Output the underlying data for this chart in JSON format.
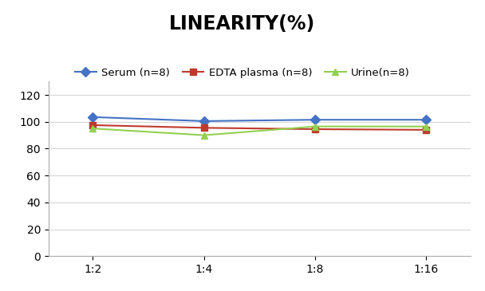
{
  "title": "LINEARITY(%)",
  "title_fontsize": 17,
  "title_fontweight": "bold",
  "x_labels": [
    "1:2",
    "1:4",
    "1:8",
    "1:16"
  ],
  "x_positions": [
    0,
    1,
    2,
    3
  ],
  "series": [
    {
      "label": "Serum (n=8)",
      "values": [
        103.5,
        100.5,
        101.5,
        101.5
      ],
      "color": "#4472C4",
      "marker": "D",
      "marker_size": 6,
      "linewidth": 1.5
    },
    {
      "label": "EDTA plasma (n=8)",
      "values": [
        97.5,
        95.5,
        94.5,
        94.0
      ],
      "color": "#C0392B",
      "marker": "s",
      "marker_size": 6,
      "linewidth": 1.5
    },
    {
      "label": "Urine(n=8)",
      "values": [
        95.0,
        90.0,
        96.5,
        96.5
      ],
      "color": "#92D050",
      "marker": "^",
      "marker_size": 6,
      "linewidth": 1.5
    }
  ],
  "ylim": [
    0,
    130
  ],
  "yticks": [
    0,
    20,
    40,
    60,
    80,
    100,
    120
  ],
  "legend_fontsize": 9.5,
  "background_color": "#ffffff",
  "grid_color": "#cccccc",
  "grid_alpha": 0.8,
  "spine_color": "#aaaaaa"
}
